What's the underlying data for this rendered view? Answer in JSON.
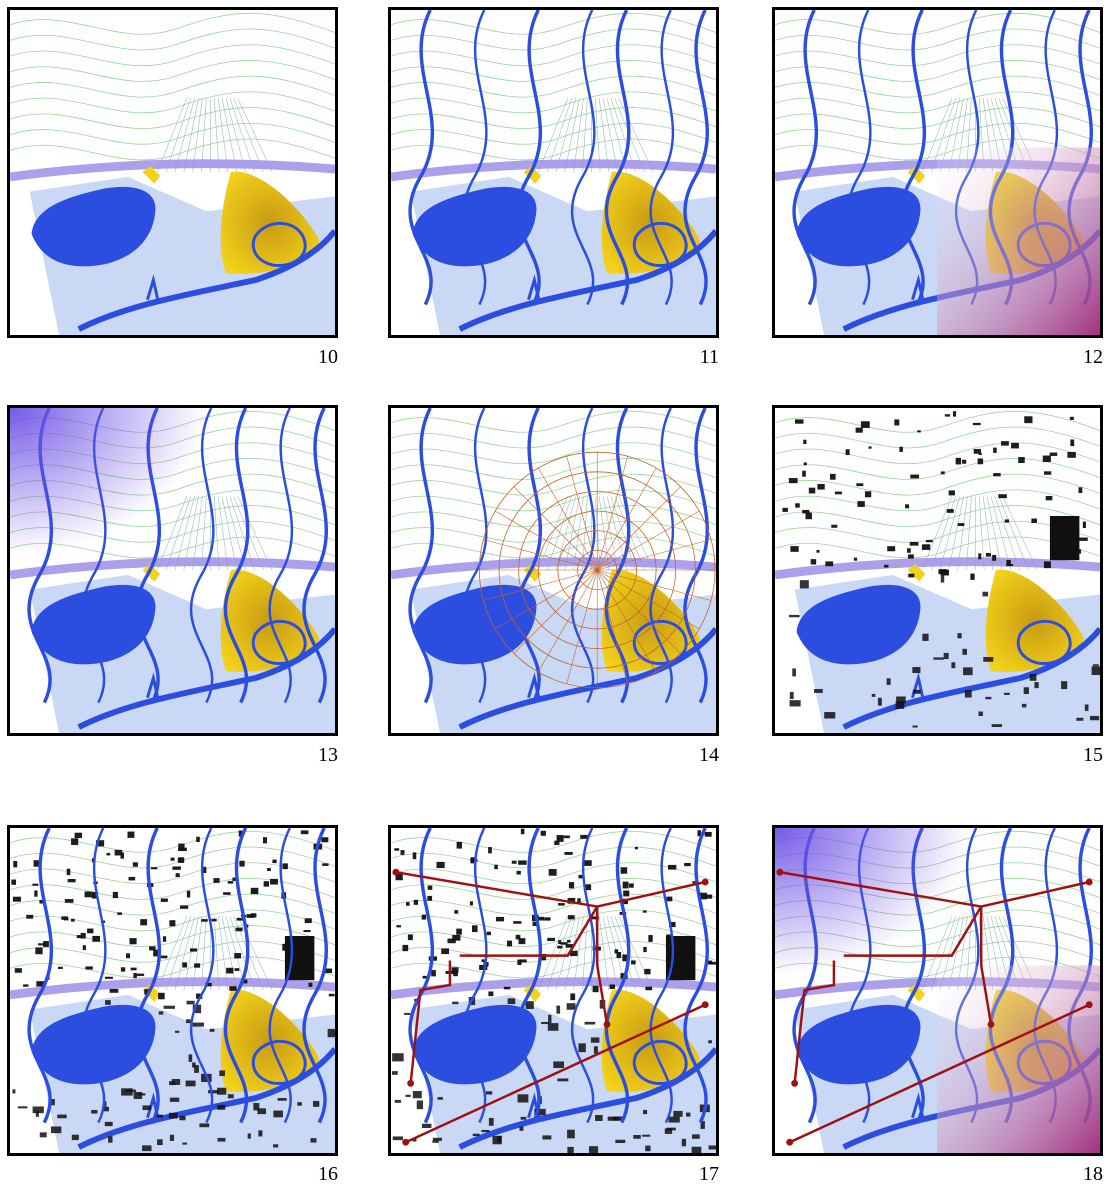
{
  "panels": [
    {
      "label": "10",
      "variant": "base"
    },
    {
      "label": "11",
      "variant": "ribbons"
    },
    {
      "label": "12",
      "variant": "ribbons-magenta"
    },
    {
      "label": "13",
      "variant": "ribbons-violet"
    },
    {
      "label": "14",
      "variant": "ribbons-polar"
    },
    {
      "label": "15",
      "variant": "buildings"
    },
    {
      "label": "16",
      "variant": "buildings-ribbons"
    },
    {
      "label": "17",
      "variant": "buildings-ribbons-arrows"
    },
    {
      "label": "18",
      "variant": "gradients-arrows"
    }
  ],
  "colors": {
    "water": "#2b4de0",
    "floodplain": "#c9d8f4",
    "yellow": "#f2d21b",
    "orange": "#e0801a",
    "band": "#9d8fe8",
    "contour": "#9bd49b",
    "arrow": "#a01010",
    "building": "#111111",
    "magenta": "#a0287a",
    "violet": "#6f52e6"
  }
}
